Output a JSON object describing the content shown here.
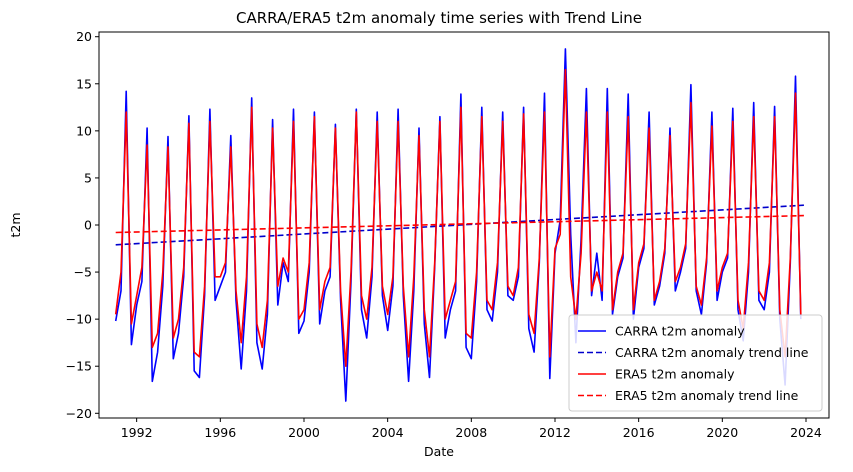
{
  "chart_data": {
    "type": "line",
    "title": "CARRA/ERA5 t2m anomaly time series with Trend Line",
    "xlabel": "Date",
    "ylabel": "t2m",
    "xlim": [
      1990.2,
      2025.1
    ],
    "ylim": [
      -20.5,
      20.5
    ],
    "x_ticks": [
      1992,
      1996,
      2000,
      2004,
      2008,
      2012,
      2016,
      2020,
      2024
    ],
    "y_ticks": [
      -20,
      -15,
      -10,
      -5,
      0,
      5,
      10,
      15,
      20
    ],
    "grid": false,
    "legend": {
      "placement": "bottom-right"
    },
    "series": [
      {
        "name": "CARRA t2m anomaly",
        "color": "#0000ff",
        "style": "solid",
        "x": [
          1991.0,
          1991.25,
          1991.5,
          1991.75,
          1992.0,
          1992.25,
          1992.5,
          1992.75,
          1993.0,
          1993.25,
          1993.5,
          1993.75,
          1994.0,
          1994.25,
          1994.5,
          1994.75,
          1995.0,
          1995.25,
          1995.5,
          1995.75,
          1996.0,
          1996.25,
          1996.5,
          1996.75,
          1997.0,
          1997.25,
          1997.5,
          1997.75,
          1998.0,
          1998.25,
          1998.5,
          1998.75,
          1999.0,
          1999.25,
          1999.5,
          1999.75,
          2000.0,
          2000.25,
          2000.5,
          2000.75,
          2001.0,
          2001.25,
          2001.5,
          2001.75,
          2002.0,
          2002.25,
          2002.5,
          2002.75,
          2003.0,
          2003.25,
          2003.5,
          2003.75,
          2004.0,
          2004.25,
          2004.5,
          2004.75,
          2005.0,
          2005.25,
          2005.5,
          2005.75,
          2006.0,
          2006.25,
          2006.5,
          2006.75,
          2007.0,
          2007.25,
          2007.5,
          2007.75,
          2008.0,
          2008.25,
          2008.5,
          2008.75,
          2009.0,
          2009.25,
          2009.5,
          2009.75,
          2010.0,
          2010.25,
          2010.5,
          2010.75,
          2011.0,
          2011.25,
          2011.5,
          2011.75,
          2012.0,
          2012.25,
          2012.5,
          2012.75,
          2013.0,
          2013.25,
          2013.5,
          2013.75,
          2014.0,
          2014.25,
          2014.5,
          2014.75,
          2015.0,
          2015.25,
          2015.5,
          2015.75,
          2016.0,
          2016.25,
          2016.5,
          2016.75,
          2017.0,
          2017.25,
          2017.5,
          2017.75,
          2018.0,
          2018.25,
          2018.5,
          2018.75,
          2019.0,
          2019.25,
          2019.5,
          2019.75,
          2020.0,
          2020.25,
          2020.5,
          2020.75,
          2021.0,
          2021.25,
          2021.5,
          2021.75,
          2022.0,
          2022.25,
          2022.5,
          2022.75,
          2023.0,
          2023.25,
          2023.5,
          2023.75
        ],
        "values": [
          -10.2,
          -7.0,
          14.2,
          -12.7,
          -8.5,
          -6.0,
          10.3,
          -16.6,
          -13.5,
          -6.5,
          9.4,
          -14.2,
          -11.5,
          -5.5,
          11.6,
          -15.5,
          -16.2,
          -7.5,
          12.3,
          -8.0,
          -6.5,
          -5.0,
          9.5,
          -8.0,
          -15.3,
          -7.0,
          13.5,
          -12.5,
          -15.3,
          -9.5,
          11.2,
          -8.5,
          -4.0,
          -6.0,
          12.3,
          -11.5,
          -10.2,
          -5.0,
          12.0,
          -10.5,
          -7.0,
          -5.5,
          10.7,
          -8.0,
          -18.7,
          -6.0,
          12.3,
          -9.0,
          -12.0,
          -5.5,
          12.0,
          -7.5,
          -11.2,
          -6.5,
          12.3,
          -7.5,
          -16.6,
          -7.0,
          10.3,
          -10.5,
          -16.2,
          -4.5,
          11.5,
          -12.0,
          -9.0,
          -7.0,
          13.9,
          -13.0,
          -14.2,
          -6.0,
          12.5,
          -9.0,
          -10.2,
          -5.0,
          12.0,
          -7.5,
          -8.0,
          -5.5,
          12.5,
          -11.0,
          -13.5,
          -4.0,
          14.0,
          -16.3,
          -3.0,
          0.5,
          18.7,
          -1.0,
          -12.5,
          -1.5,
          14.5,
          -7.5,
          -3.0,
          -8.0,
          14.5,
          -9.5,
          -5.5,
          -3.5,
          13.9,
          -10.0,
          -4.5,
          -2.5,
          12.0,
          -8.5,
          -6.5,
          -3.0,
          10.3,
          -7.0,
          -5.0,
          -2.5,
          14.9,
          -7.0,
          -9.5,
          -4.0,
          12.0,
          -8.0,
          -5.0,
          -3.5,
          12.4,
          -9.0,
          -12.3,
          -5.0,
          13.0,
          -8.0,
          -9.0,
          -5.0,
          12.6,
          -10.0,
          -17.0,
          -4.0,
          15.8,
          -10.0
        ]
      },
      {
        "name": "CARRA t2m anomaly trend line",
        "color": "#0000cc",
        "style": "dashed",
        "x": [
          1991.0,
          2023.9
        ],
        "values": [
          -2.1,
          2.1
        ]
      },
      {
        "name": "ERA5 t2m anomaly",
        "color": "#ff0000",
        "style": "solid",
        "x": [
          1991.0,
          1991.25,
          1991.5,
          1991.75,
          1992.0,
          1992.25,
          1992.5,
          1992.75,
          1993.0,
          1993.25,
          1993.5,
          1993.75,
          1994.0,
          1994.25,
          1994.5,
          1994.75,
          1995.0,
          1995.25,
          1995.5,
          1995.75,
          1996.0,
          1996.25,
          1996.5,
          1996.75,
          1997.0,
          1997.25,
          1997.5,
          1997.75,
          1998.0,
          1998.25,
          1998.5,
          1998.75,
          1999.0,
          1999.25,
          1999.5,
          1999.75,
          2000.0,
          2000.25,
          2000.5,
          2000.75,
          2001.0,
          2001.25,
          2001.5,
          2001.75,
          2002.0,
          2002.25,
          2002.5,
          2002.75,
          2003.0,
          2003.25,
          2003.5,
          2003.75,
          2004.0,
          2004.25,
          2004.5,
          2004.75,
          2005.0,
          2005.25,
          2005.5,
          2005.75,
          2006.0,
          2006.25,
          2006.5,
          2006.75,
          2007.0,
          2007.25,
          2007.5,
          2007.75,
          2008.0,
          2008.25,
          2008.5,
          2008.75,
          2009.0,
          2009.25,
          2009.5,
          2009.75,
          2010.0,
          2010.25,
          2010.5,
          2010.75,
          2011.0,
          2011.25,
          2011.5,
          2011.75,
          2012.0,
          2012.25,
          2012.5,
          2012.75,
          2013.0,
          2013.25,
          2013.5,
          2013.75,
          2014.0,
          2014.25,
          2014.5,
          2014.75,
          2015.0,
          2015.25,
          2015.5,
          2015.75,
          2016.0,
          2016.25,
          2016.5,
          2016.75,
          2017.0,
          2017.25,
          2017.5,
          2017.75,
          2018.0,
          2018.25,
          2018.5,
          2018.75,
          2019.0,
          2019.25,
          2019.5,
          2019.75,
          2020.0,
          2020.25,
          2020.5,
          2020.75,
          2021.0,
          2021.25,
          2021.5,
          2021.75,
          2022.0,
          2022.25,
          2022.5,
          2022.75,
          2023.0,
          2023.25,
          2023.5,
          2023.75
        ],
        "values": [
          -9.5,
          -5.0,
          12.0,
          -10.5,
          -7.5,
          -4.5,
          8.5,
          -13.0,
          -11.5,
          -5.0,
          8.3,
          -12.0,
          -10.0,
          -4.5,
          10.8,
          -13.5,
          -14.0,
          -6.5,
          11.0,
          -5.5,
          -5.5,
          -4.0,
          8.3,
          -7.0,
          -12.5,
          -5.5,
          12.5,
          -10.5,
          -13.0,
          -8.0,
          10.3,
          -6.5,
          -3.5,
          -5.0,
          11.0,
          -10.0,
          -9.0,
          -4.0,
          11.5,
          -9.0,
          -6.0,
          -4.5,
          10.3,
          -7.0,
          -15.0,
          -5.0,
          12.0,
          -7.5,
          -10.0,
          -4.5,
          11.0,
          -6.5,
          -9.5,
          -5.5,
          11.0,
          -6.5,
          -14.0,
          -5.5,
          9.5,
          -9.0,
          -14.0,
          -4.0,
          11.0,
          -10.0,
          -8.0,
          -6.0,
          12.5,
          -11.5,
          -12.0,
          -5.0,
          11.5,
          -8.0,
          -9.0,
          -4.0,
          11.0,
          -6.5,
          -7.5,
          -4.5,
          11.8,
          -9.5,
          -11.5,
          -3.5,
          12.0,
          -14.0,
          -2.5,
          -1.0,
          16.5,
          -5.5,
          -10.0,
          -3.0,
          12.0,
          -7.0,
          -5.0,
          -7.0,
          12.0,
          -9.0,
          -5.0,
          -3.0,
          11.5,
          -9.0,
          -4.0,
          -2.0,
          10.3,
          -8.0,
          -6.0,
          -2.5,
          9.5,
          -6.0,
          -4.5,
          -2.0,
          13.0,
          -6.5,
          -8.5,
          -3.5,
          10.5,
          -7.0,
          -4.5,
          -3.0,
          11.0,
          -8.0,
          -11.0,
          -4.0,
          11.5,
          -7.0,
          -8.0,
          -4.0,
          11.5,
          -9.0,
          -14.0,
          -3.5,
          14.0,
          -9.5
        ]
      },
      {
        "name": "ERA5 t2m anomaly trend line",
        "color": "#ff0000",
        "style": "dashed",
        "x": [
          1991.0,
          2023.9
        ],
        "values": [
          -0.8,
          1.0
        ]
      }
    ]
  }
}
